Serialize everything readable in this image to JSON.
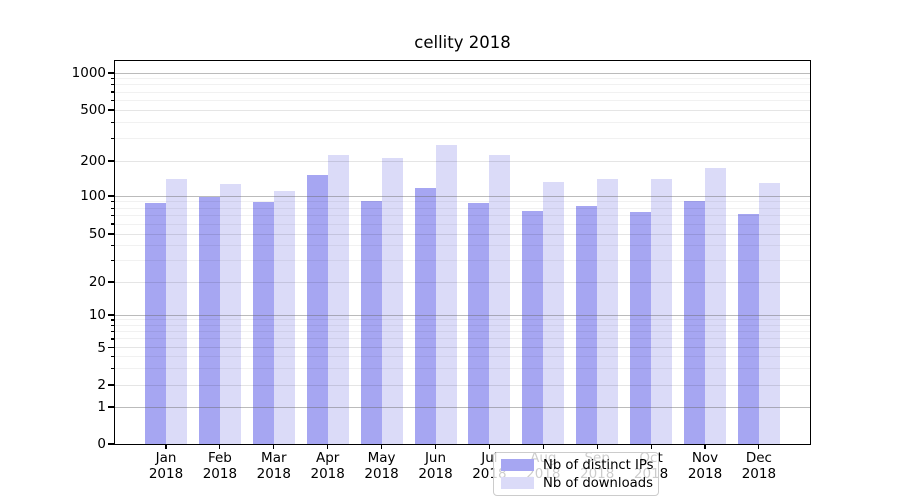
{
  "chart_data": {
    "type": "bar",
    "title": "cellity 2018",
    "categories": [
      "Jan 2018",
      "Feb 2018",
      "Mar 2018",
      "Apr 2018",
      "May 2018",
      "Jun 2018",
      "Jul 2018",
      "Aug 2018",
      "Sep 2018",
      "Oct 2018",
      "Nov 2018",
      "Dec 2018"
    ],
    "series": [
      {
        "name": "Nb of distinct IPs",
        "color": "#a6a6f2",
        "values": [
          88,
          98,
          90,
          152,
          92,
          117,
          88,
          76,
          84,
          75,
          91,
          72
        ]
      },
      {
        "name": "Nb of downloads",
        "color": "#dbdbf8",
        "values": [
          140,
          128,
          110,
          222,
          210,
          265,
          224,
          133,
          139,
          140,
          174,
          129
        ]
      }
    ],
    "xlabel": "",
    "ylabel": "",
    "yscale": "symlog",
    "yticks": [
      0,
      1,
      2,
      5,
      10,
      20,
      50,
      100,
      200,
      500,
      1000
    ],
    "major_grid_values": [
      1,
      10,
      100,
      1000
    ],
    "minor_grid_values": [
      2,
      3,
      4,
      5,
      6,
      7,
      8,
      9,
      20,
      30,
      40,
      50,
      60,
      70,
      80,
      90,
      200,
      300,
      400,
      500,
      600,
      700,
      800,
      900
    ],
    "ylim": [
      0,
      1200
    ],
    "grid": "on",
    "legend_position": "lower center (inside plot)"
  },
  "legend": {
    "items": [
      {
        "label": "Nb of distinct IPs",
        "color": "#a6a6f2"
      },
      {
        "label": "Nb of downloads",
        "color": "#dbdbf8"
      }
    ]
  }
}
